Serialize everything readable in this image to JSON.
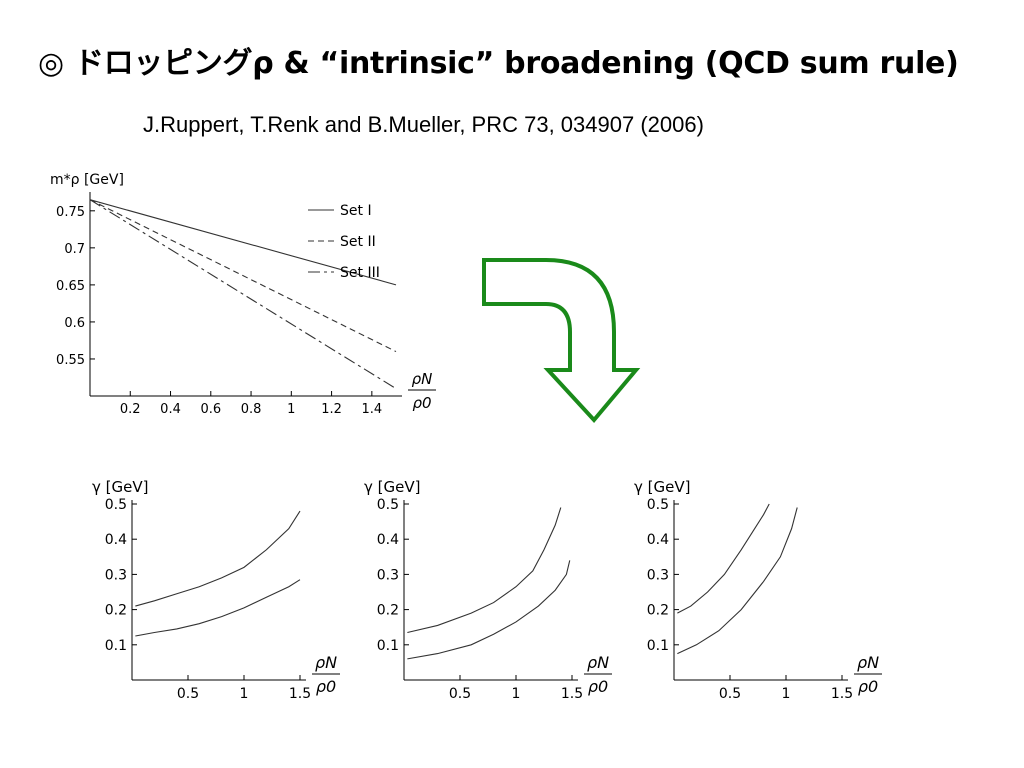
{
  "slide": {
    "title": "◎ ドロッピングρ & “intrinsic” broadening (QCD sum rule)",
    "reference": "J.Ruppert, T.Renk and B.Mueller, PRC 73, 034907 (2006)"
  },
  "arrow": {
    "color": "#1a8a1a",
    "icon": "curved-down-arrow-icon"
  },
  "chart_data": [
    {
      "type": "line",
      "ylabel": "m*ρ [GeV]",
      "xlabel_num": "ρN",
      "xlabel_den": "ρ0",
      "xlim": [
        0,
        1.52
      ],
      "ylim": [
        0.5,
        0.77
      ],
      "xticks": [
        "0.2",
        "0.4",
        "0.6",
        "0.8",
        "1",
        "1.2",
        "1.4"
      ],
      "yticks": [
        "0.55",
        "0.6",
        "0.65",
        "0.7",
        "0.75"
      ],
      "legend_position": "top-right",
      "series": [
        {
          "name": "Set I",
          "dash": "solid",
          "x": [
            0,
            1.52
          ],
          "y": [
            0.765,
            0.65
          ]
        },
        {
          "name": "Set II",
          "dash": "dashed",
          "x": [
            0,
            1.52
          ],
          "y": [
            0.765,
            0.56
          ]
        },
        {
          "name": "Set III",
          "dash": "dashdot",
          "x": [
            0,
            1.52
          ],
          "y": [
            0.765,
            0.51
          ]
        }
      ]
    },
    {
      "type": "line",
      "ylabel": "γ [GeV]",
      "xlabel_num": "ρN",
      "xlabel_den": "ρ0",
      "xlim": [
        0,
        1.5
      ],
      "ylim": [
        0,
        0.5
      ],
      "xticks": [
        "0.5",
        "1",
        "1.5"
      ],
      "yticks": [
        "0.1",
        "0.2",
        "0.3",
        "0.4",
        "0.5"
      ],
      "series": [
        {
          "x": [
            0.03,
            0.2,
            0.4,
            0.6,
            0.8,
            1.0,
            1.2,
            1.4,
            1.5
          ],
          "y": [
            0.21,
            0.225,
            0.245,
            0.265,
            0.29,
            0.32,
            0.37,
            0.43,
            0.48
          ]
        },
        {
          "x": [
            0.03,
            0.2,
            0.4,
            0.6,
            0.8,
            1.0,
            1.2,
            1.4,
            1.5
          ],
          "y": [
            0.125,
            0.135,
            0.145,
            0.16,
            0.18,
            0.205,
            0.235,
            0.265,
            0.285
          ]
        }
      ]
    },
    {
      "type": "line",
      "ylabel": "γ [GeV]",
      "xlabel_num": "ρN",
      "xlabel_den": "ρ0",
      "xlim": [
        0,
        1.5
      ],
      "ylim": [
        0,
        0.5
      ],
      "xticks": [
        "0.5",
        "1",
        "1.5"
      ],
      "yticks": [
        "0.1",
        "0.2",
        "0.3",
        "0.4",
        "0.5"
      ],
      "series": [
        {
          "x": [
            0.03,
            0.3,
            0.6,
            0.8,
            1.0,
            1.15,
            1.25,
            1.35,
            1.4
          ],
          "y": [
            0.135,
            0.155,
            0.19,
            0.22,
            0.265,
            0.31,
            0.37,
            0.44,
            0.49
          ]
        },
        {
          "x": [
            0.03,
            0.3,
            0.6,
            0.8,
            1.0,
            1.2,
            1.35,
            1.45,
            1.48
          ],
          "y": [
            0.06,
            0.075,
            0.1,
            0.13,
            0.165,
            0.21,
            0.255,
            0.3,
            0.34
          ]
        }
      ]
    },
    {
      "type": "line",
      "ylabel": "γ [GeV]",
      "xlabel_num": "ρN",
      "xlabel_den": "ρ0",
      "xlim": [
        0,
        1.5
      ],
      "ylim": [
        0,
        0.5
      ],
      "xticks": [
        "0.5",
        "1",
        "1.5"
      ],
      "yticks": [
        "0.1",
        "0.2",
        "0.3",
        "0.4",
        "0.5"
      ],
      "series": [
        {
          "x": [
            0.03,
            0.15,
            0.3,
            0.45,
            0.6,
            0.7,
            0.8,
            0.85
          ],
          "y": [
            0.19,
            0.21,
            0.25,
            0.3,
            0.37,
            0.42,
            0.47,
            0.5
          ]
        },
        {
          "x": [
            0.03,
            0.2,
            0.4,
            0.6,
            0.8,
            0.95,
            1.05,
            1.1
          ],
          "y": [
            0.075,
            0.1,
            0.14,
            0.2,
            0.28,
            0.35,
            0.43,
            0.49
          ]
        }
      ]
    }
  ]
}
